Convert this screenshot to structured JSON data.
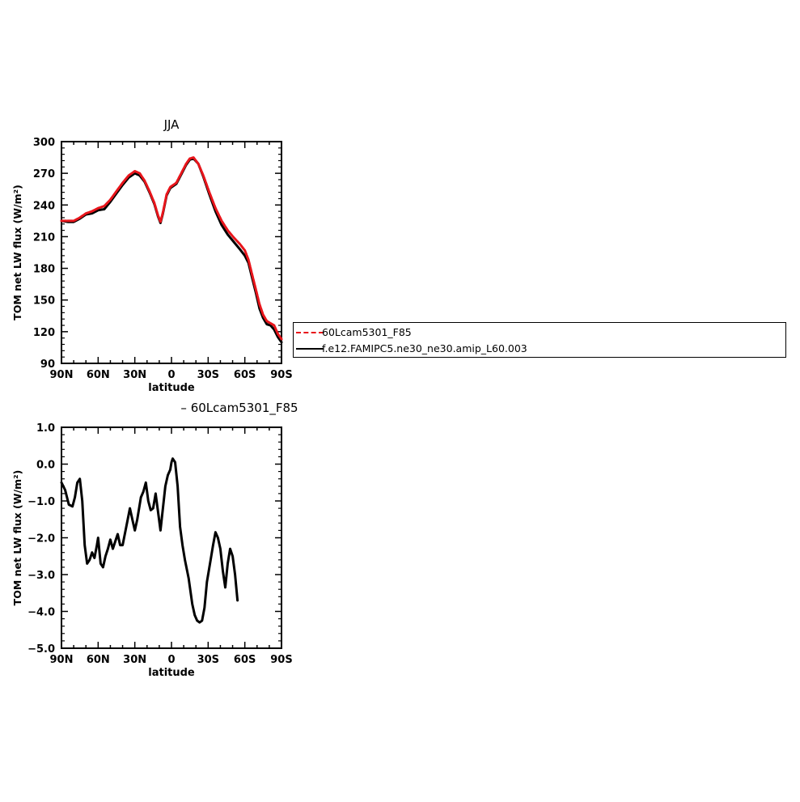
{
  "chart_data": [
    {
      "type": "line",
      "title": "JJA",
      "xlabel": "latitude",
      "ylabel": "TOM net LW flux (W/m²)",
      "xlim": [
        90,
        -90
      ],
      "ylim": [
        90,
        300
      ],
      "x_ticks": [
        90,
        60,
        30,
        0,
        -30,
        -60,
        -90
      ],
      "x_tick_labels": [
        "90N",
        "60N",
        "30N",
        "0",
        "30S",
        "60S",
        "90S"
      ],
      "y_ticks": [
        90,
        120,
        150,
        180,
        210,
        240,
        270,
        300
      ],
      "y_tick_labels": [
        "90",
        "120",
        "150",
        "180",
        "210",
        "240",
        "270",
        "300"
      ],
      "grid": false,
      "legend_position": "right",
      "series": [
        {
          "name": "60Lcam5301_F85",
          "color": "#e8151b",
          "style": "dashed",
          "points": [
            [
              90,
              225
            ],
            [
              85,
              225
            ],
            [
              80,
              225
            ],
            [
              75,
              228
            ],
            [
              70,
              232
            ],
            [
              65,
              234
            ],
            [
              60,
              237
            ],
            [
              55,
              239
            ],
            [
              50,
              245
            ],
            [
              45,
              253
            ],
            [
              40,
              261
            ],
            [
              35,
              268
            ],
            [
              30,
              272
            ],
            [
              26,
              270
            ],
            [
              22,
              263
            ],
            [
              18,
              253
            ],
            [
              14,
              242
            ],
            [
              11,
              230
            ],
            [
              9,
              224
            ],
            [
              7,
              233
            ],
            [
              4,
              250
            ],
            [
              1,
              257
            ],
            [
              -4,
              261
            ],
            [
              -8,
              270
            ],
            [
              -12,
              279
            ],
            [
              -15,
              284
            ],
            [
              -18,
              285
            ],
            [
              -22,
              279
            ],
            [
              -26,
              268
            ],
            [
              -31,
              252
            ],
            [
              -36,
              237
            ],
            [
              -41,
              225
            ],
            [
              -46,
              216
            ],
            [
              -51,
              209
            ],
            [
              -56,
              203
            ],
            [
              -60,
              197
            ],
            [
              -63,
              188
            ],
            [
              -66,
              174
            ],
            [
              -69,
              160
            ],
            [
              -72,
              146
            ],
            [
              -75,
              136
            ],
            [
              -78,
              130
            ],
            [
              -81,
              128
            ],
            [
              -84,
              126
            ],
            [
              -87,
              118
            ],
            [
              -90,
              113
            ]
          ]
        },
        {
          "name": "f.e12.FAMIPC5.ne30_ne30.amip_L60.003",
          "color": "#000000",
          "style": "solid",
          "points": [
            [
              90,
              225
            ],
            [
              85,
              224
            ],
            [
              80,
              224
            ],
            [
              75,
              227
            ],
            [
              70,
              231
            ],
            [
              65,
              232
            ],
            [
              60,
              235
            ],
            [
              55,
              236
            ],
            [
              50,
              243
            ],
            [
              45,
              251
            ],
            [
              40,
              259
            ],
            [
              35,
              266
            ],
            [
              30,
              270
            ],
            [
              26,
              268
            ],
            [
              22,
              262
            ],
            [
              18,
              252
            ],
            [
              14,
              241
            ],
            [
              11,
              229
            ],
            [
              9,
              223
            ],
            [
              7,
              232
            ],
            [
              4,
              249
            ],
            [
              1,
              256
            ],
            [
              -4,
              260
            ],
            [
              -8,
              269
            ],
            [
              -12,
              278
            ],
            [
              -15,
              283
            ],
            [
              -18,
              284
            ],
            [
              -22,
              279
            ],
            [
              -26,
              267
            ],
            [
              -31,
              250
            ],
            [
              -36,
              234
            ],
            [
              -41,
              221
            ],
            [
              -46,
              212
            ],
            [
              -51,
              205
            ],
            [
              -56,
              198
            ],
            [
              -60,
              192
            ],
            [
              -63,
              185
            ],
            [
              -66,
              171
            ],
            [
              -69,
              157
            ],
            [
              -72,
              142
            ],
            [
              -75,
              133
            ],
            [
              -78,
              127
            ],
            [
              -81,
              126
            ],
            [
              -84,
              122
            ],
            [
              -87,
              115
            ],
            [
              -90,
              110
            ]
          ]
        }
      ]
    },
    {
      "type": "line",
      "title": "– 60Lcam5301_F85",
      "xlabel": "latitude",
      "ylabel": "TOM net LW flux (W/m²)",
      "xlim": [
        90,
        -90
      ],
      "ylim": [
        -5.0,
        1.0
      ],
      "x_ticks": [
        90,
        60,
        30,
        0,
        -30,
        -60,
        -90
      ],
      "x_tick_labels": [
        "90N",
        "60N",
        "30N",
        "0",
        "30S",
        "60S",
        "90S"
      ],
      "y_ticks": [
        -5,
        -4,
        -3,
        -2,
        -1,
        0,
        1
      ],
      "y_tick_labels": [
        "−5.0",
        "−4.0",
        "−3.0",
        "−2.0",
        "−1.0",
        "0.0",
        "1.0"
      ],
      "grid": false,
      "series": [
        {
          "color": "#000000",
          "style": "solid",
          "points": [
            [
              90,
              -0.5
            ],
            [
              87,
              -0.7
            ],
            [
              84,
              -1.1
            ],
            [
              81,
              -1.15
            ],
            [
              79,
              -0.9
            ],
            [
              77,
              -0.5
            ],
            [
              75,
              -0.4
            ],
            [
              73,
              -1.0
            ],
            [
              71,
              -2.2
            ],
            [
              69,
              -2.7
            ],
            [
              67,
              -2.6
            ],
            [
              65,
              -2.4
            ],
            [
              63,
              -2.55
            ],
            [
              61,
              -2.2
            ],
            [
              60,
              -2.0
            ],
            [
              58,
              -2.7
            ],
            [
              56,
              -2.8
            ],
            [
              54,
              -2.5
            ],
            [
              52,
              -2.3
            ],
            [
              50,
              -2.05
            ],
            [
              48,
              -2.3
            ],
            [
              46,
              -2.1
            ],
            [
              44,
              -1.9
            ],
            [
              42,
              -2.2
            ],
            [
              40,
              -2.2
            ],
            [
              37,
              -1.7
            ],
            [
              34,
              -1.2
            ],
            [
              32,
              -1.5
            ],
            [
              30,
              -1.8
            ],
            [
              28,
              -1.5
            ],
            [
              25,
              -0.9
            ],
            [
              23,
              -0.75
            ],
            [
              21,
              -0.5
            ],
            [
              19,
              -1.0
            ],
            [
              17,
              -1.25
            ],
            [
              15,
              -1.2
            ],
            [
              13,
              -0.8
            ],
            [
              11,
              -1.3
            ],
            [
              9,
              -1.8
            ],
            [
              7,
              -1.2
            ],
            [
              5,
              -0.6
            ],
            [
              3,
              -0.3
            ],
            [
              1,
              -0.15
            ],
            [
              0,
              0.05
            ],
            [
              -1,
              0.15
            ],
            [
              -3,
              0.05
            ],
            [
              -5,
              -0.6
            ],
            [
              -7,
              -1.7
            ],
            [
              -9,
              -2.2
            ],
            [
              -11,
              -2.6
            ],
            [
              -14,
              -3.1
            ],
            [
              -17,
              -3.8
            ],
            [
              -19,
              -4.1
            ],
            [
              -21,
              -4.25
            ],
            [
              -23,
              -4.3
            ],
            [
              -25,
              -4.25
            ],
            [
              -27,
              -3.9
            ],
            [
              -29,
              -3.2
            ],
            [
              -32,
              -2.6
            ],
            [
              -34,
              -2.2
            ],
            [
              -36,
              -1.85
            ],
            [
              -38,
              -2.0
            ],
            [
              -40,
              -2.3
            ],
            [
              -42,
              -2.9
            ],
            [
              -44,
              -3.35
            ],
            [
              -46,
              -2.7
            ],
            [
              -48,
              -2.3
            ],
            [
              -50,
              -2.5
            ],
            [
              -52,
              -3.0
            ],
            [
              -54,
              -3.7
            ]
          ]
        }
      ]
    }
  ]
}
